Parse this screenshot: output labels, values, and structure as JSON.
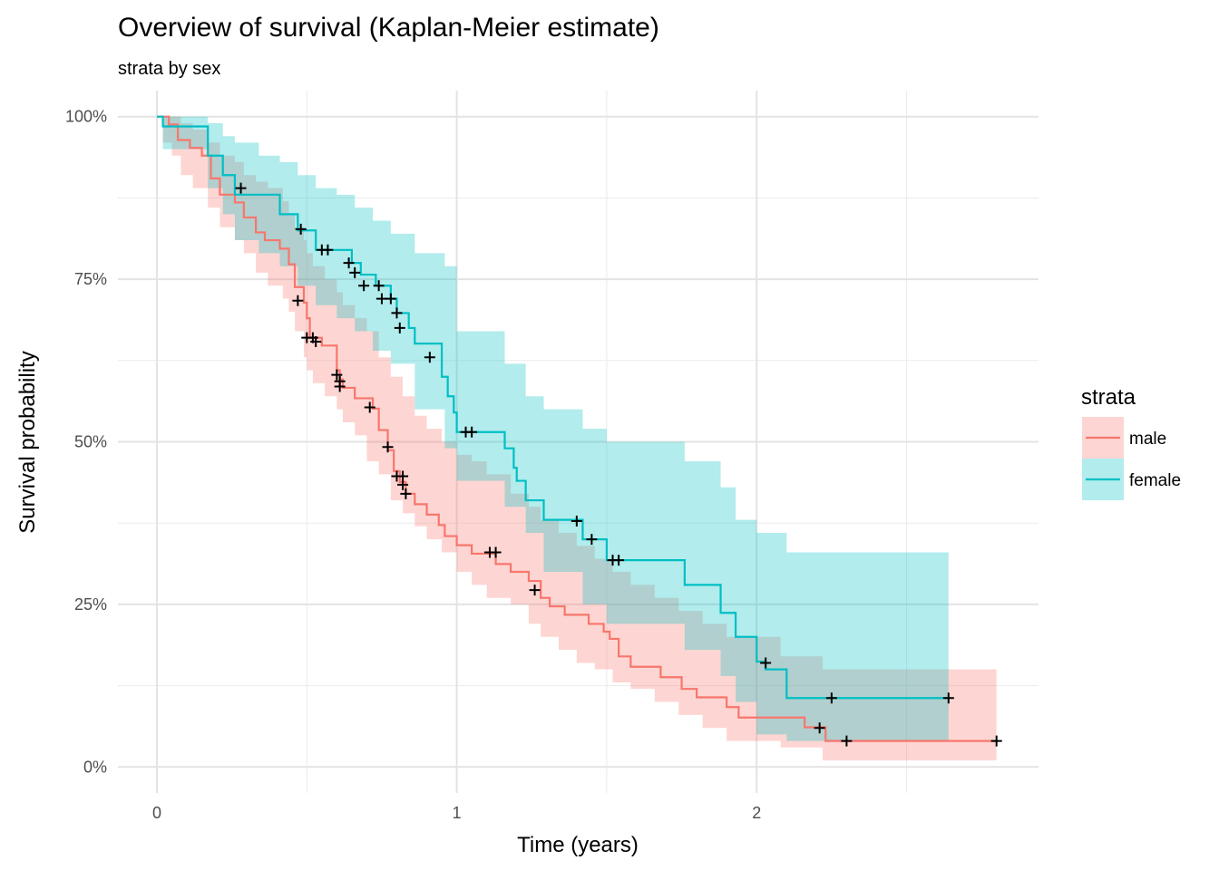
{
  "title": "Overview of survival (Kaplan-Meier estimate)",
  "subtitle": "strata by sex",
  "chart_data": {
    "type": "line",
    "subtype": "kaplan-meier step curves with confidence bands and censor marks",
    "title": "Overview of survival (Kaplan-Meier estimate)",
    "subtitle": "strata by sex",
    "xlabel": "Time (years)",
    "ylabel": "Survival probability",
    "xlim": [
      -0.13,
      2.94
    ],
    "ylim": [
      -0.04,
      1.04
    ],
    "x_ticks": [
      0,
      1,
      2
    ],
    "x_tick_labels": [
      "0",
      "1",
      "2"
    ],
    "y_ticks": [
      0,
      0.25,
      0.5,
      0.75,
      1.0
    ],
    "y_tick_labels": [
      "0%",
      "25%",
      "50%",
      "75%",
      "100%"
    ],
    "grid": true,
    "legend": {
      "title": "strata",
      "position": "right"
    },
    "series": [
      {
        "name": "male",
        "color": "#F8766D",
        "fill": "#F8766D",
        "steps": [
          [
            0,
            1.0
          ],
          [
            0.04,
            0.988
          ],
          [
            0.07,
            0.964
          ],
          [
            0.11,
            0.952
          ],
          [
            0.15,
            0.94
          ],
          [
            0.18,
            0.905
          ],
          [
            0.21,
            0.88
          ],
          [
            0.26,
            0.868
          ],
          [
            0.29,
            0.845
          ],
          [
            0.33,
            0.822
          ],
          [
            0.36,
            0.81
          ],
          [
            0.41,
            0.797
          ],
          [
            0.44,
            0.773
          ],
          [
            0.46,
            0.738
          ],
          [
            0.49,
            0.714
          ],
          [
            0.5,
            0.69
          ],
          [
            0.51,
            0.66
          ],
          [
            0.55,
            0.648
          ],
          [
            0.6,
            0.622
          ],
          [
            0.6,
            0.61
          ],
          [
            0.61,
            0.596
          ],
          [
            0.62,
            0.583
          ],
          [
            0.66,
            0.567
          ],
          [
            0.72,
            0.551
          ],
          [
            0.74,
            0.518
          ],
          [
            0.77,
            0.487
          ],
          [
            0.79,
            0.455
          ],
          [
            0.81,
            0.438
          ],
          [
            0.83,
            0.42
          ],
          [
            0.86,
            0.404
          ],
          [
            0.9,
            0.388
          ],
          [
            0.94,
            0.372
          ],
          [
            0.96,
            0.355
          ],
          [
            1.0,
            0.341
          ],
          [
            1.05,
            0.328
          ],
          [
            1.13,
            0.312
          ],
          [
            1.18,
            0.3
          ],
          [
            1.24,
            0.286
          ],
          [
            1.28,
            0.26
          ],
          [
            1.31,
            0.247
          ],
          [
            1.36,
            0.234
          ],
          [
            1.44,
            0.22
          ],
          [
            1.49,
            0.208
          ],
          [
            1.51,
            0.197
          ],
          [
            1.54,
            0.17
          ],
          [
            1.58,
            0.154
          ],
          [
            1.68,
            0.138
          ],
          [
            1.75,
            0.12
          ],
          [
            1.8,
            0.107
          ],
          [
            1.9,
            0.092
          ],
          [
            1.94,
            0.076
          ],
          [
            2.16,
            0.061
          ],
          [
            2.23,
            0.04
          ],
          [
            2.8,
            0.04
          ]
        ],
        "band": [
          [
            0,
            1.0,
            1.0
          ],
          [
            0.02,
            1.0,
            0.96
          ],
          [
            0.05,
            1.0,
            0.94
          ],
          [
            0.08,
            0.99,
            0.91
          ],
          [
            0.12,
            0.98,
            0.89
          ],
          [
            0.17,
            0.96,
            0.86
          ],
          [
            0.21,
            0.94,
            0.83
          ],
          [
            0.26,
            0.93,
            0.81
          ],
          [
            0.29,
            0.91,
            0.79
          ],
          [
            0.33,
            0.9,
            0.76
          ],
          [
            0.37,
            0.89,
            0.74
          ],
          [
            0.42,
            0.87,
            0.72
          ],
          [
            0.44,
            0.85,
            0.7
          ],
          [
            0.46,
            0.83,
            0.67
          ],
          [
            0.49,
            0.81,
            0.63
          ],
          [
            0.5,
            0.79,
            0.61
          ],
          [
            0.52,
            0.77,
            0.59
          ],
          [
            0.56,
            0.75,
            0.57
          ],
          [
            0.6,
            0.73,
            0.55
          ],
          [
            0.62,
            0.71,
            0.53
          ],
          [
            0.66,
            0.69,
            0.51
          ],
          [
            0.7,
            0.67,
            0.47
          ],
          [
            0.74,
            0.63,
            0.45
          ],
          [
            0.78,
            0.6,
            0.41
          ],
          [
            0.82,
            0.57,
            0.39
          ],
          [
            0.86,
            0.54,
            0.37
          ],
          [
            0.9,
            0.52,
            0.35
          ],
          [
            0.95,
            0.5,
            0.33
          ],
          [
            1.0,
            0.48,
            0.3
          ],
          [
            1.05,
            0.47,
            0.28
          ],
          [
            1.1,
            0.45,
            0.26
          ],
          [
            1.18,
            0.42,
            0.25
          ],
          [
            1.24,
            0.4,
            0.22
          ],
          [
            1.28,
            0.38,
            0.2
          ],
          [
            1.34,
            0.36,
            0.18
          ],
          [
            1.4,
            0.34,
            0.16
          ],
          [
            1.46,
            0.32,
            0.15
          ],
          [
            1.52,
            0.3,
            0.13
          ],
          [
            1.58,
            0.28,
            0.12
          ],
          [
            1.66,
            0.26,
            0.1
          ],
          [
            1.74,
            0.24,
            0.08
          ],
          [
            1.82,
            0.22,
            0.06
          ],
          [
            1.9,
            0.2,
            0.04
          ],
          [
            2.08,
            0.17,
            0.03
          ],
          [
            2.22,
            0.15,
            0.01
          ],
          [
            2.8,
            0.14,
            0.01
          ]
        ],
        "censored": [
          [
            0.28,
            0.89
          ],
          [
            0.47,
            0.717
          ],
          [
            0.5,
            0.66
          ],
          [
            0.52,
            0.66
          ],
          [
            0.53,
            0.654
          ],
          [
            0.6,
            0.603
          ],
          [
            0.61,
            0.593
          ],
          [
            0.61,
            0.585
          ],
          [
            0.71,
            0.553
          ],
          [
            0.77,
            0.492
          ],
          [
            0.8,
            0.447
          ],
          [
            0.82,
            0.447
          ],
          [
            0.82,
            0.434
          ],
          [
            0.83,
            0.42
          ],
          [
            1.11,
            0.33
          ],
          [
            1.13,
            0.33
          ],
          [
            1.26,
            0.272
          ],
          [
            2.21,
            0.06
          ],
          [
            2.3,
            0.04
          ],
          [
            2.8,
            0.04
          ]
        ]
      },
      {
        "name": "female",
        "color": "#00BFC4",
        "fill": "#00BFC4",
        "steps": [
          [
            0,
            1.0
          ],
          [
            0.02,
            0.985
          ],
          [
            0.17,
            0.94
          ],
          [
            0.22,
            0.91
          ],
          [
            0.26,
            0.88
          ],
          [
            0.41,
            0.85
          ],
          [
            0.47,
            0.825
          ],
          [
            0.53,
            0.795
          ],
          [
            0.6,
            0.795
          ],
          [
            0.65,
            0.775
          ],
          [
            0.68,
            0.757
          ],
          [
            0.73,
            0.74
          ],
          [
            0.78,
            0.72
          ],
          [
            0.8,
            0.698
          ],
          [
            0.84,
            0.675
          ],
          [
            0.86,
            0.651
          ],
          [
            0.95,
            0.63
          ],
          [
            0.95,
            0.6
          ],
          [
            0.97,
            0.57
          ],
          [
            0.99,
            0.545
          ],
          [
            1.0,
            0.515
          ],
          [
            1.16,
            0.49
          ],
          [
            1.19,
            0.46
          ],
          [
            1.2,
            0.44
          ],
          [
            1.23,
            0.41
          ],
          [
            1.29,
            0.38
          ],
          [
            1.42,
            0.35
          ],
          [
            1.5,
            0.318
          ],
          [
            1.76,
            0.28
          ],
          [
            1.88,
            0.237
          ],
          [
            1.93,
            0.2
          ],
          [
            2.0,
            0.162
          ],
          [
            2.03,
            0.15
          ],
          [
            2.1,
            0.106
          ],
          [
            2.64,
            0.106
          ]
        ],
        "band": [
          [
            0,
            1.0,
            1.0
          ],
          [
            0.02,
            1.0,
            0.95
          ],
          [
            0.17,
            0.99,
            0.89
          ],
          [
            0.22,
            0.97,
            0.85
          ],
          [
            0.26,
            0.96,
            0.81
          ],
          [
            0.34,
            0.94,
            0.79
          ],
          [
            0.41,
            0.93,
            0.77
          ],
          [
            0.47,
            0.91,
            0.74
          ],
          [
            0.53,
            0.89,
            0.71
          ],
          [
            0.6,
            0.88,
            0.69
          ],
          [
            0.66,
            0.86,
            0.67
          ],
          [
            0.72,
            0.84,
            0.64
          ],
          [
            0.78,
            0.82,
            0.62
          ],
          [
            0.86,
            0.79,
            0.55
          ],
          [
            0.96,
            0.77,
            0.49
          ],
          [
            1.0,
            0.67,
            0.44
          ],
          [
            1.16,
            0.62,
            0.4
          ],
          [
            1.23,
            0.57,
            0.36
          ],
          [
            1.29,
            0.55,
            0.3
          ],
          [
            1.42,
            0.52,
            0.25
          ],
          [
            1.5,
            0.5,
            0.22
          ],
          [
            1.76,
            0.47,
            0.18
          ],
          [
            1.88,
            0.43,
            0.14
          ],
          [
            1.93,
            0.38,
            0.1
          ],
          [
            2.0,
            0.36,
            0.05
          ],
          [
            2.1,
            0.33,
            0.04
          ],
          [
            2.64,
            0.33,
            0.04
          ]
        ],
        "censored": [
          [
            0.48,
            0.827
          ],
          [
            0.55,
            0.795
          ],
          [
            0.57,
            0.795
          ],
          [
            0.64,
            0.775
          ],
          [
            0.66,
            0.76
          ],
          [
            0.69,
            0.74
          ],
          [
            0.74,
            0.74
          ],
          [
            0.75,
            0.72
          ],
          [
            0.78,
            0.72
          ],
          [
            0.8,
            0.698
          ],
          [
            0.81,
            0.675
          ],
          [
            0.91,
            0.63
          ],
          [
            1.03,
            0.515
          ],
          [
            1.05,
            0.515
          ],
          [
            1.4,
            0.378
          ],
          [
            1.45,
            0.35
          ],
          [
            1.52,
            0.318
          ],
          [
            1.54,
            0.318
          ],
          [
            2.03,
            0.16
          ],
          [
            2.25,
            0.106
          ],
          [
            2.64,
            0.106
          ]
        ]
      }
    ]
  }
}
